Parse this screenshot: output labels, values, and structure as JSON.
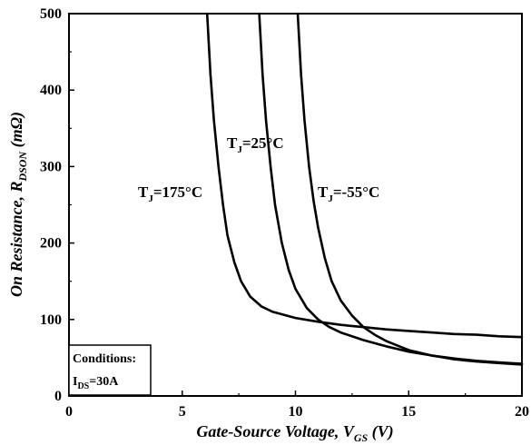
{
  "chart_data": {
    "type": "line",
    "xlabel": {
      "main": "Gate-Source Voltage, V",
      "sub": "GS",
      "unit": " (V)"
    },
    "ylabel": {
      "main": "On Resistance, R",
      "sub": "DSON",
      "unit": " (mΩ)"
    },
    "xlim": [
      0,
      20
    ],
    "ylim": [
      0,
      500
    ],
    "xticks": [
      0,
      5,
      10,
      15,
      20
    ],
    "yticks": [
      0,
      100,
      200,
      300,
      400,
      500
    ],
    "grid": false,
    "series": [
      {
        "name": "TJ=175°C",
        "label_parts": {
          "main": "T",
          "sub": "J",
          "rest": "=175°C"
        },
        "x": [
          6.1,
          6.25,
          6.4,
          6.6,
          6.8,
          7.0,
          7.3,
          7.6,
          8.0,
          8.5,
          9.0,
          10.0,
          11.0,
          12.0,
          13.0,
          14.0,
          15.0,
          16.0,
          17.0,
          18.0,
          19.0,
          20.0
        ],
        "y": [
          500,
          420,
          360,
          300,
          250,
          210,
          175,
          150,
          130,
          117,
          110,
          102,
          97,
          93,
          90,
          87,
          85,
          83,
          81,
          80,
          78,
          77
        ]
      },
      {
        "name": "TJ=25°C",
        "label_parts": {
          "main": "T",
          "sub": "J",
          "rest": "=25°C"
        },
        "x": [
          8.4,
          8.55,
          8.7,
          8.9,
          9.1,
          9.4,
          9.7,
          10.0,
          10.5,
          11.0,
          11.5,
          12.0,
          13.0,
          14.0,
          15.0,
          16.0,
          17.0,
          18.0,
          19.0,
          20.0
        ],
        "y": [
          500,
          420,
          360,
          300,
          250,
          200,
          165,
          140,
          115,
          100,
          90,
          83,
          73,
          65,
          58,
          53,
          49,
          46,
          44,
          42
        ]
      },
      {
        "name": "TJ=-55°C",
        "label_parts": {
          "main": "T",
          "sub": "J",
          "rest": "=-55°C"
        },
        "x": [
          10.1,
          10.25,
          10.4,
          10.6,
          10.8,
          11.0,
          11.3,
          11.6,
          12.0,
          12.5,
          13.0,
          13.5,
          14.0,
          15.0,
          16.0,
          17.0,
          18.0,
          19.0,
          20.0
        ],
        "y": [
          500,
          420,
          360,
          300,
          255,
          220,
          180,
          150,
          125,
          105,
          90,
          80,
          72,
          60,
          53,
          48,
          45,
          43,
          41
        ]
      }
    ],
    "annotations": {
      "conditions_title": "Conditions:",
      "conditions_parts": {
        "main": "I",
        "sub": "DS",
        "rest": "=30A"
      }
    }
  }
}
